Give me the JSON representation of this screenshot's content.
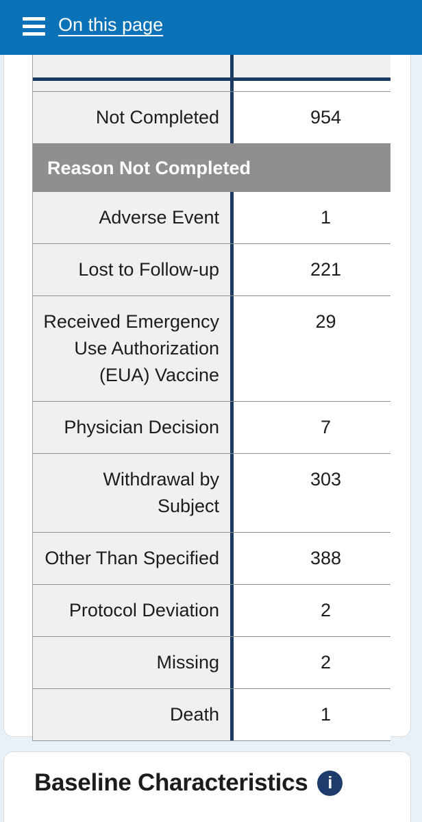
{
  "theme": {
    "header_blue": "#0c72b8",
    "navy": "#1b3a5f",
    "band_gray": "#8f8f8f",
    "label_bg": "#f0f0f1",
    "page_bg": "#e9f1f8",
    "row_border": "#8f8f8f",
    "card_border": "#d8dce0",
    "icon_navy": "#1d3c6c",
    "text": "#1c1c1c"
  },
  "header": {
    "menu_icon": "hamburger-icon",
    "on_this_page_label": "On this page"
  },
  "flow_table": {
    "rows": [
      {
        "type": "clipped",
        "label": "",
        "value": ""
      },
      {
        "type": "divider"
      },
      {
        "type": "sliver",
        "label": "",
        "value": ""
      },
      {
        "type": "data",
        "label": "Not Completed",
        "value": "954"
      },
      {
        "type": "section",
        "label": "Reason Not Completed"
      },
      {
        "type": "data",
        "label": "Adverse Event",
        "value": "1"
      },
      {
        "type": "data",
        "label": "Lost to Follow-up",
        "value": "221"
      },
      {
        "type": "data",
        "label": "Received Emergency Use Authorization (EUA) Vaccine",
        "value": "29"
      },
      {
        "type": "data",
        "label": "Physician Decision",
        "value": "7"
      },
      {
        "type": "data",
        "label": "Withdrawal by Subject",
        "value": "303"
      },
      {
        "type": "data",
        "label": "Other Than Specified",
        "value": "388"
      },
      {
        "type": "data",
        "label": "Protocol Deviation",
        "value": "2"
      },
      {
        "type": "data",
        "label": "Missing",
        "value": "2"
      },
      {
        "type": "data",
        "label": "Death",
        "value": "1"
      }
    ]
  },
  "baseline": {
    "title": "Baseline Characteristics",
    "info_icon_glyph": "i"
  }
}
